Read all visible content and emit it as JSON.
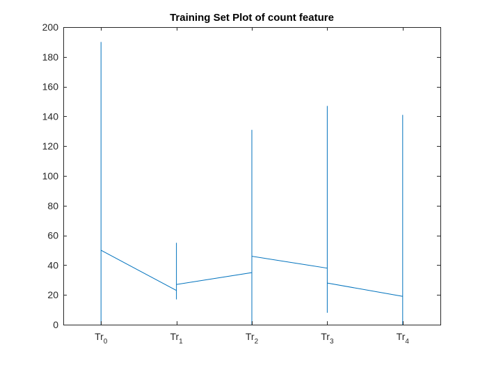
{
  "chart_data": {
    "type": "line",
    "title": "Training Set Plot of count feature",
    "xlabel": "",
    "ylabel": "",
    "ylim": [
      0,
      200
    ],
    "ytick_step": 20,
    "categories": [
      {
        "base": "Tr",
        "sub": "0"
      },
      {
        "base": "Tr",
        "sub": "1"
      },
      {
        "base": "Tr",
        "sub": "2"
      },
      {
        "base": "Tr",
        "sub": "3"
      },
      {
        "base": "Tr",
        "sub": "4"
      }
    ],
    "grid": false,
    "series": [
      {
        "color": "#0072BD",
        "points": [
          {
            "x": 0,
            "y": 0
          },
          {
            "x": 0,
            "y": 190
          },
          {
            "x": 0,
            "y": 50
          },
          {
            "x": 1,
            "y": 23
          },
          {
            "x": 1,
            "y": 17
          },
          {
            "x": 1,
            "y": 55
          },
          {
            "x": 1,
            "y": 27
          },
          {
            "x": 2,
            "y": 35
          },
          {
            "x": 2,
            "y": 0
          },
          {
            "x": 2,
            "y": 131
          },
          {
            "x": 2,
            "y": 46
          },
          {
            "x": 3,
            "y": 38
          },
          {
            "x": 3,
            "y": 147
          },
          {
            "x": 3,
            "y": 8
          },
          {
            "x": 3,
            "y": 28
          },
          {
            "x": 4,
            "y": 19
          },
          {
            "x": 4,
            "y": 141
          },
          {
            "x": 4,
            "y": 0
          }
        ]
      }
    ]
  }
}
